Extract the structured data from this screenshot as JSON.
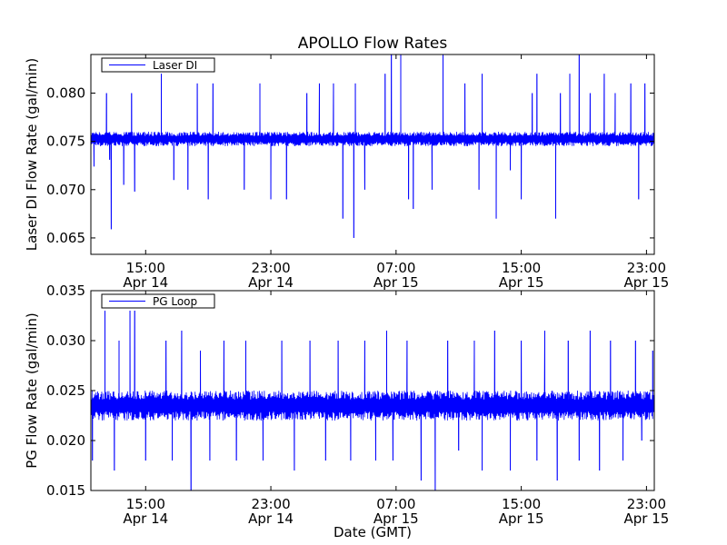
{
  "figure": {
    "title": "APOLLO Flow Rates",
    "xlabel": "Date (GMT)"
  },
  "chart_data": [
    {
      "type": "line",
      "name": "laser-di",
      "title": "APOLLO Flow Rates",
      "xlabel": "",
      "ylabel": "Laser DI Flow Rate (gal/min)",
      "ylim": [
        0.0633,
        0.084
      ],
      "xlim_hours": [
        0,
        36
      ],
      "grid": false,
      "legend": {
        "position": "top-left",
        "entries": [
          "Laser DI"
        ]
      },
      "series": [
        {
          "name": "Laser DI",
          "color": "#0000ff",
          "baseline_low": 0.0745,
          "baseline_high": 0.076
        }
      ],
      "yticks": [
        0.065,
        0.07,
        0.075,
        0.08
      ],
      "ytick_labels": [
        "0.065",
        "0.070",
        "0.075",
        "0.080"
      ],
      "xticks_hours": [
        3.5,
        11.5,
        19.5,
        27.5,
        35.5
      ],
      "xtick_labels": [
        [
          "15:00",
          "Apr 14"
        ],
        [
          "23:00",
          "Apr 14"
        ],
        [
          "07:00",
          "Apr 15"
        ],
        [
          "15:00",
          "Apr 15"
        ],
        [
          "23:00",
          "Apr 15"
        ]
      ],
      "spikes": [
        {
          "x": 0.2,
          "y": 0.0724
        },
        {
          "x": 1.0,
          "y": 0.08
        },
        {
          "x": 1.2,
          "y": 0.0731
        },
        {
          "x": 1.3,
          "y": 0.0659
        },
        {
          "x": 2.1,
          "y": 0.0705
        },
        {
          "x": 2.6,
          "y": 0.08
        },
        {
          "x": 2.8,
          "y": 0.0698
        },
        {
          "x": 4.5,
          "y": 0.082
        },
        {
          "x": 5.3,
          "y": 0.071
        },
        {
          "x": 6.2,
          "y": 0.07
        },
        {
          "x": 6.8,
          "y": 0.081
        },
        {
          "x": 7.5,
          "y": 0.069
        },
        {
          "x": 7.8,
          "y": 0.081
        },
        {
          "x": 9.8,
          "y": 0.07
        },
        {
          "x": 10.8,
          "y": 0.081
        },
        {
          "x": 11.5,
          "y": 0.069
        },
        {
          "x": 12.5,
          "y": 0.069
        },
        {
          "x": 13.8,
          "y": 0.08
        },
        {
          "x": 14.6,
          "y": 0.081
        },
        {
          "x": 15.5,
          "y": 0.081
        },
        {
          "x": 16.1,
          "y": 0.067
        },
        {
          "x": 16.8,
          "y": 0.065
        },
        {
          "x": 16.9,
          "y": 0.081
        },
        {
          "x": 17.5,
          "y": 0.07
        },
        {
          "x": 18.8,
          "y": 0.082
        },
        {
          "x": 19.2,
          "y": 0.084
        },
        {
          "x": 19.8,
          "y": 0.084
        },
        {
          "x": 20.3,
          "y": 0.069
        },
        {
          "x": 20.6,
          "y": 0.068
        },
        {
          "x": 21.8,
          "y": 0.07
        },
        {
          "x": 22.5,
          "y": 0.084
        },
        {
          "x": 23.9,
          "y": 0.081
        },
        {
          "x": 24.8,
          "y": 0.07
        },
        {
          "x": 25.0,
          "y": 0.082
        },
        {
          "x": 25.9,
          "y": 0.067
        },
        {
          "x": 26.8,
          "y": 0.072
        },
        {
          "x": 27.5,
          "y": 0.069
        },
        {
          "x": 28.2,
          "y": 0.08
        },
        {
          "x": 28.5,
          "y": 0.082
        },
        {
          "x": 29.7,
          "y": 0.067
        },
        {
          "x": 30.0,
          "y": 0.08
        },
        {
          "x": 30.6,
          "y": 0.082
        },
        {
          "x": 31.2,
          "y": 0.084
        },
        {
          "x": 31.9,
          "y": 0.08
        },
        {
          "x": 32.8,
          "y": 0.082
        },
        {
          "x": 33.5,
          "y": 0.08
        },
        {
          "x": 34.5,
          "y": 0.081
        },
        {
          "x": 35.0,
          "y": 0.069
        },
        {
          "x": 35.4,
          "y": 0.081
        }
      ]
    },
    {
      "type": "line",
      "name": "pg-loop",
      "title": "",
      "xlabel": "Date (GMT)",
      "ylabel": "PG Flow Rate (gal/min)",
      "ylim": [
        0.015,
        0.035
      ],
      "xlim_hours": [
        0,
        36
      ],
      "grid": false,
      "legend": {
        "position": "top-left",
        "entries": [
          "PG Loop"
        ]
      },
      "series": [
        {
          "name": "PG Loop",
          "color": "#0000ff",
          "baseline_low": 0.022,
          "baseline_high": 0.025
        }
      ],
      "yticks": [
        0.015,
        0.02,
        0.025,
        0.03,
        0.035
      ],
      "ytick_labels": [
        "0.015",
        "0.020",
        "0.025",
        "0.030",
        "0.035"
      ],
      "xticks_hours": [
        3.5,
        11.5,
        19.5,
        27.5,
        35.5
      ],
      "xtick_labels": [
        [
          "15:00",
          "Apr 14"
        ],
        [
          "23:00",
          "Apr 14"
        ],
        [
          "07:00",
          "Apr 15"
        ],
        [
          "15:00",
          "Apr 15"
        ],
        [
          "23:00",
          "Apr 15"
        ]
      ],
      "spikes": [
        {
          "x": 0.1,
          "y": 0.018
        },
        {
          "x": 0.9,
          "y": 0.033
        },
        {
          "x": 1.5,
          "y": 0.017
        },
        {
          "x": 1.8,
          "y": 0.03
        },
        {
          "x": 2.5,
          "y": 0.033
        },
        {
          "x": 2.8,
          "y": 0.033
        },
        {
          "x": 3.5,
          "y": 0.018
        },
        {
          "x": 4.8,
          "y": 0.03
        },
        {
          "x": 5.2,
          "y": 0.018
        },
        {
          "x": 5.8,
          "y": 0.031
        },
        {
          "x": 6.4,
          "y": 0.015
        },
        {
          "x": 7.0,
          "y": 0.029
        },
        {
          "x": 7.6,
          "y": 0.018
        },
        {
          "x": 8.5,
          "y": 0.03
        },
        {
          "x": 9.3,
          "y": 0.018
        },
        {
          "x": 9.9,
          "y": 0.03
        },
        {
          "x": 11.0,
          "y": 0.018
        },
        {
          "x": 12.2,
          "y": 0.03
        },
        {
          "x": 13.0,
          "y": 0.017
        },
        {
          "x": 14.0,
          "y": 0.03
        },
        {
          "x": 15.0,
          "y": 0.018
        },
        {
          "x": 15.8,
          "y": 0.03
        },
        {
          "x": 16.6,
          "y": 0.018
        },
        {
          "x": 17.5,
          "y": 0.03
        },
        {
          "x": 18.2,
          "y": 0.018
        },
        {
          "x": 18.9,
          "y": 0.031
        },
        {
          "x": 19.3,
          "y": 0.018
        },
        {
          "x": 20.2,
          "y": 0.03
        },
        {
          "x": 21.1,
          "y": 0.016
        },
        {
          "x": 22.0,
          "y": 0.015
        },
        {
          "x": 22.8,
          "y": 0.03
        },
        {
          "x": 23.5,
          "y": 0.019
        },
        {
          "x": 24.5,
          "y": 0.03
        },
        {
          "x": 25.0,
          "y": 0.017
        },
        {
          "x": 25.8,
          "y": 0.031
        },
        {
          "x": 26.8,
          "y": 0.017
        },
        {
          "x": 27.5,
          "y": 0.03
        },
        {
          "x": 28.5,
          "y": 0.018
        },
        {
          "x": 29.0,
          "y": 0.031
        },
        {
          "x": 29.8,
          "y": 0.016
        },
        {
          "x": 30.5,
          "y": 0.03
        },
        {
          "x": 31.2,
          "y": 0.018
        },
        {
          "x": 31.9,
          "y": 0.031
        },
        {
          "x": 32.5,
          "y": 0.017
        },
        {
          "x": 33.2,
          "y": 0.03
        },
        {
          "x": 34.0,
          "y": 0.018
        },
        {
          "x": 34.8,
          "y": 0.03
        },
        {
          "x": 35.2,
          "y": 0.02
        },
        {
          "x": 35.9,
          "y": 0.029
        }
      ]
    }
  ]
}
